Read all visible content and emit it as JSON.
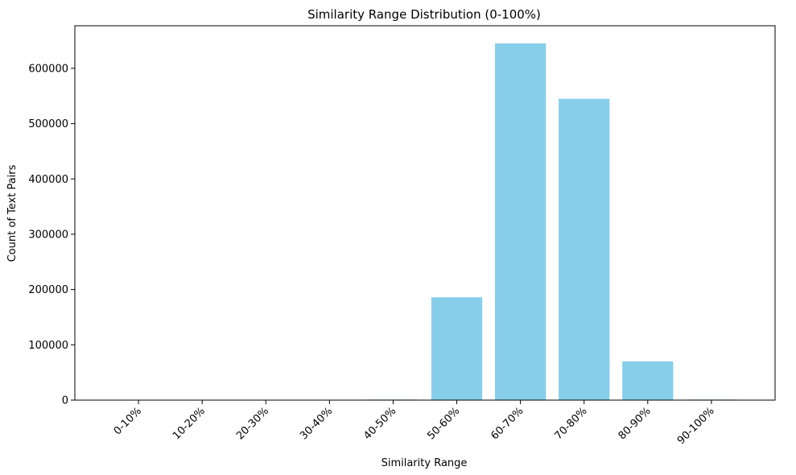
{
  "chart_data": {
    "type": "bar",
    "title": "Similarity Range Distribution (0-100%)",
    "xlabel": "Similarity Range",
    "ylabel": "Count of Text Pairs",
    "categories": [
      "0-10%",
      "10-20%",
      "20-30%",
      "30-40%",
      "40-50%",
      "50-60%",
      "60-70%",
      "70-80%",
      "80-90%",
      "90-100%"
    ],
    "values": [
      0,
      0,
      0,
      0,
      1000,
      186000,
      645000,
      545000,
      70000,
      1000
    ],
    "ylim": [
      0,
      677000
    ],
    "yticks": [
      0,
      100000,
      200000,
      300000,
      400000,
      500000,
      600000
    ],
    "bar_color": "#87ceeb",
    "grid": false
  }
}
